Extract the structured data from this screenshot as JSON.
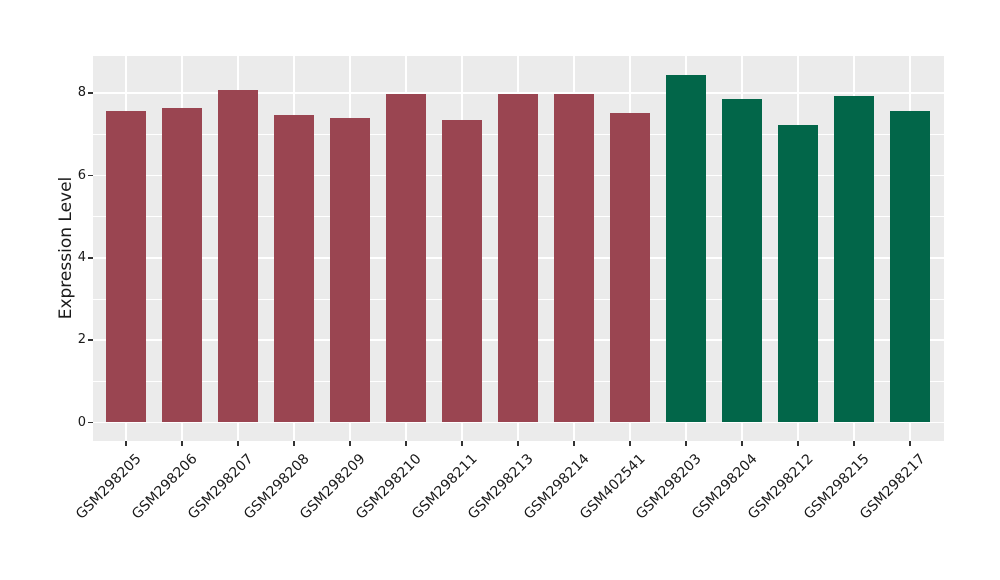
{
  "chart_data": {
    "type": "bar",
    "title": "",
    "xlabel": "",
    "ylabel": "Expression Level",
    "ylim": [
      0,
      8.9
    ],
    "yticks": [
      0,
      2,
      4,
      6,
      8
    ],
    "yticks_minor": [
      1,
      3,
      5,
      7
    ],
    "grid": "white major and minor horizontal lines, white vertical lines at bar centers, legend none",
    "categories": [
      "GSM298205",
      "GSM298206",
      "GSM298207",
      "GSM298208",
      "GSM298209",
      "GSM298210",
      "GSM298211",
      "GSM298213",
      "GSM298214",
      "GSM402541",
      "GSM298203",
      "GSM298204",
      "GSM298212",
      "GSM298215",
      "GSM298217"
    ],
    "values": [
      7.57,
      7.64,
      8.09,
      7.48,
      7.41,
      7.97,
      7.34,
      7.97,
      7.99,
      7.52,
      8.45,
      7.86,
      7.22,
      7.94,
      7.56
    ],
    "bar_groups": [
      "maroon",
      "maroon",
      "maroon",
      "maroon",
      "maroon",
      "maroon",
      "maroon",
      "maroon",
      "maroon",
      "maroon",
      "green",
      "green",
      "green",
      "green",
      "green"
    ],
    "colors": {
      "maroon": "#9A4551",
      "green": "#026649",
      "panel_bg": "#EBEBEB",
      "gridline": "#FFFFFF",
      "axis_text": "#1A1A1A",
      "tick_mark": "#333333"
    }
  }
}
